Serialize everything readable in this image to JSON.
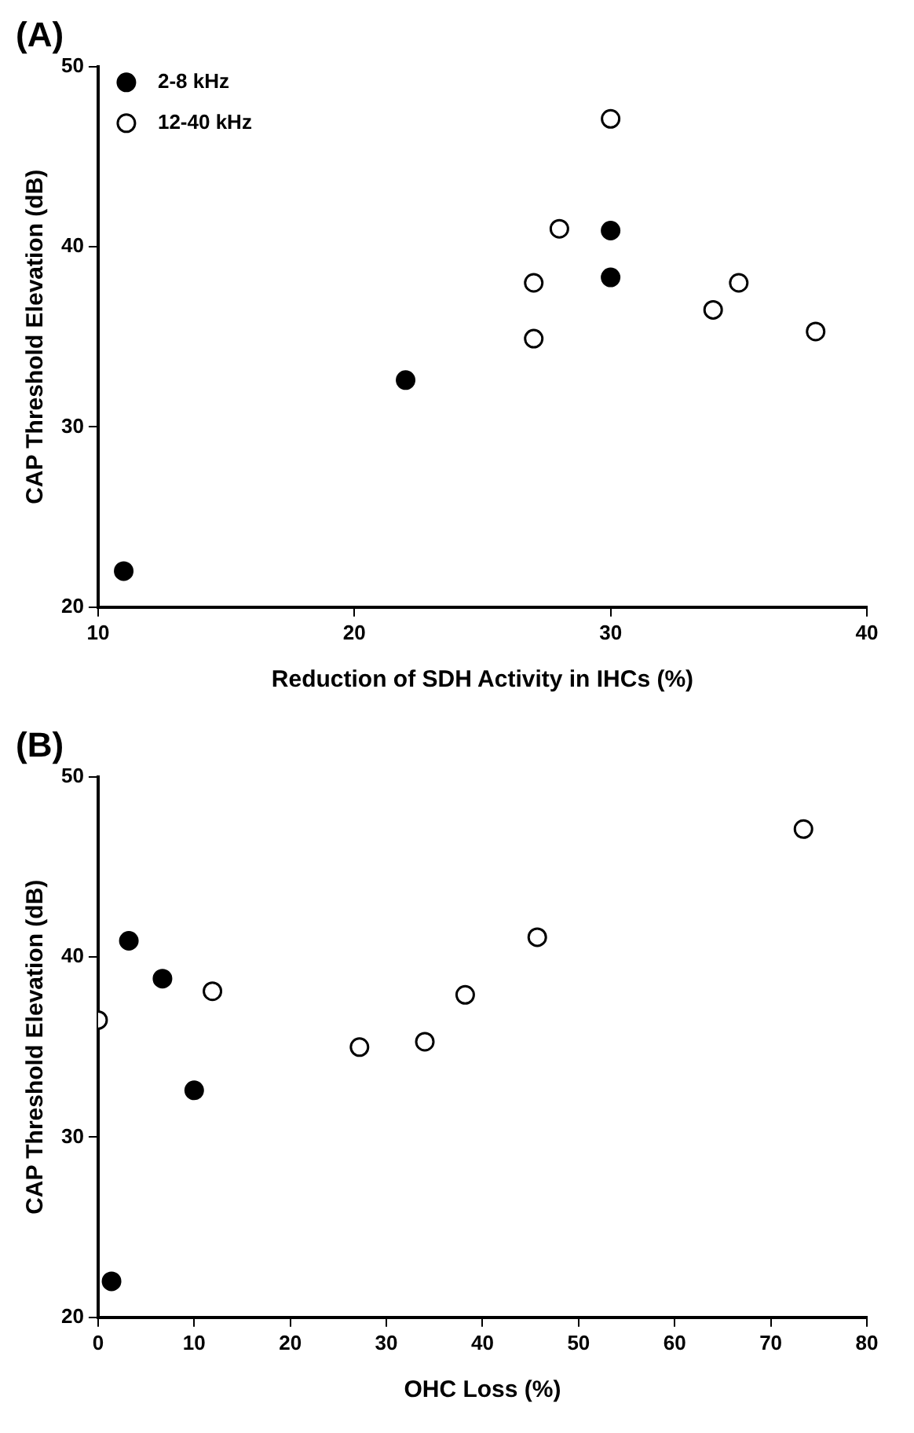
{
  "chart_data": [
    {
      "type": "scatter",
      "title": "(A)",
      "xlabel": "Reduction of SDH Activity in IHCs (%)",
      "ylabel": "CAP Threshold Elevation (dB)",
      "xlim": [
        10,
        40
      ],
      "xticks": [
        10,
        20,
        30,
        40
      ],
      "ylim": [
        20,
        50
      ],
      "yticks": [
        20,
        30,
        40,
        50
      ],
      "grid": false,
      "legend": "top left",
      "marker": "circle",
      "series": [
        {
          "name": "2-8 kHz",
          "color": "#000000",
          "x": [
            11,
            22,
            30,
            30
          ],
          "values": [
            22.0,
            32.6,
            40.9,
            38.3
          ]
        },
        {
          "name": "12-40 kHz",
          "color": "#ffffff",
          "x": [
            30,
            28,
            27,
            27,
            34,
            35,
            38
          ],
          "values": [
            47.1,
            41.0,
            38.0,
            34.9,
            36.5,
            38.0,
            35.3
          ]
        }
      ]
    },
    {
      "type": "scatter",
      "title": "(B)",
      "xlabel": "OHC Loss (%)",
      "ylabel": "CAP Threshold Elevation (dB)",
      "xlim": [
        0,
        80
      ],
      "xticks": [
        0,
        10,
        20,
        30,
        40,
        50,
        60,
        70,
        80
      ],
      "ylim": [
        20,
        50
      ],
      "yticks": [
        20,
        30,
        40,
        50
      ],
      "grid": false,
      "legend": false,
      "marker": "circle",
      "series": [
        {
          "color": "#000000",
          "x": [
            1.4,
            3.2,
            6.7,
            10.0
          ],
          "values": [
            22.0,
            40.9,
            38.8,
            32.6
          ]
        },
        {
          "color": "#ffffff",
          "x": [
            0,
            11.9,
            27.2,
            34.0,
            38.2,
            45.7,
            73.4
          ],
          "values": [
            36.5,
            38.1,
            35.0,
            35.3,
            37.9,
            41.1,
            47.1
          ]
        }
      ]
    }
  ]
}
